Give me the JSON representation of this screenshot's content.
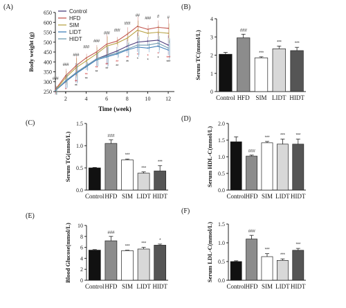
{
  "colors": {
    "Control": "#4b3b7a",
    "HFD": "#c2554e",
    "SIM": "#b9a447",
    "LIDT": "#3f7fb8",
    "HIDT": "#6e9bb0",
    "star_red": "#d23b3b",
    "star_dark": "#333333",
    "bar_control": "#111111",
    "bar_hfd": "#8c8c8c",
    "bar_white": "#ffffff",
    "bar_light": "#d8d8d8",
    "bar_dark": "#555555"
  },
  "chart_data": [
    {
      "panel": "(A)",
      "type": "line",
      "xlabel": "Time (week)",
      "ylabel": "Body weight (g)",
      "xlim": [
        1,
        12.6
      ],
      "ylim": [
        250,
        650
      ],
      "xticks": [
        2,
        4,
        6,
        8,
        10,
        12
      ],
      "yticks": [
        250,
        300,
        350,
        400,
        450,
        500,
        550,
        600,
        650
      ],
      "x": [
        1,
        2,
        3,
        4,
        5,
        6,
        7,
        8,
        9,
        10,
        11,
        12
      ],
      "legend": [
        "Control",
        "HFD",
        "SIM",
        "LIDT",
        "HIDT"
      ],
      "series": [
        {
          "name": "Control",
          "values": [
            255,
            300,
            345,
            380,
            415,
            435,
            455,
            480,
            500,
            505,
            510,
            485
          ]
        },
        {
          "name": "HFD",
          "values": [
            260,
            330,
            380,
            420,
            450,
            490,
            505,
            540,
            580,
            565,
            575,
            570
          ]
        },
        {
          "name": "SIM",
          "values": [
            255,
            320,
            370,
            405,
            440,
            480,
            495,
            520,
            560,
            545,
            550,
            545
          ]
        },
        {
          "name": "LIDT",
          "values": [
            255,
            300,
            340,
            375,
            410,
            425,
            440,
            460,
            475,
            470,
            480,
            460
          ]
        },
        {
          "name": "HIDT",
          "values": [
            255,
            305,
            345,
            380,
            415,
            430,
            445,
            465,
            485,
            485,
            495,
            470
          ]
        }
      ],
      "sig_top": [
        "###",
        "###",
        "###",
        "###",
        "###",
        "###",
        "###",
        "###",
        "##",
        "###",
        "#",
        "#"
      ],
      "sig_bottom": [
        "*",
        "**",
        "**",
        "**",
        "**",
        "**",
        "**",
        "*",
        "*",
        "*",
        "***"
      ]
    },
    {
      "panel": "(B)",
      "type": "bar",
      "ylabel": "Serum TC(mmol/L)",
      "ylim": [
        0,
        4
      ],
      "yticks": [
        0,
        1,
        2,
        3,
        4
      ],
      "categories": [
        "Control",
        "HFD",
        "SIM",
        "LIDT",
        "HIDT"
      ],
      "values": [
        2.05,
        2.95,
        1.85,
        2.35,
        2.25
      ],
      "errors": [
        0.1,
        0.2,
        0.06,
        0.15,
        0.18
      ],
      "sig": [
        "",
        "###",
        "***",
        "***",
        "***"
      ]
    },
    {
      "panel": "(C)",
      "type": "bar",
      "ylabel": "Serum TG(mmol/L)",
      "ylim": [
        0,
        1.5
      ],
      "yticks": [
        0,
        0.5,
        1.0,
        1.5
      ],
      "ytick_labels": [
        "0.0",
        "0.5",
        "1.0",
        "1.5"
      ],
      "categories": [
        "Control",
        "HFD",
        "SIM",
        "LIDT",
        "HIDT"
      ],
      "values": [
        0.5,
        1.05,
        0.68,
        0.38,
        0.43
      ],
      "errors": [
        0.01,
        0.08,
        0.02,
        0.03,
        0.12
      ],
      "sig": [
        "",
        "###",
        "***",
        "***",
        "***"
      ]
    },
    {
      "panel": "(D)",
      "type": "bar",
      "ylabel": "Serum HDL-C(mmol/L)",
      "ylim": [
        0,
        2.0
      ],
      "yticks": [
        0,
        0.5,
        1.0,
        1.5,
        2.0
      ],
      "ytick_labels": [
        "0.0",
        "0.5",
        "1.0",
        "1.5",
        "2.0"
      ],
      "categories": [
        "Control",
        "HFD",
        "SIM",
        "LIDT",
        "HIDT"
      ],
      "values": [
        1.45,
        1.02,
        1.42,
        1.38,
        1.38
      ],
      "errors": [
        0.15,
        0.03,
        0.04,
        0.15,
        0.15
      ],
      "sig": [
        "",
        "###",
        "***",
        "***",
        "***"
      ]
    },
    {
      "panel": "(E)",
      "type": "bar",
      "ylabel": "Blood Glucose(mmol/L)",
      "ylim": [
        0,
        10
      ],
      "yticks": [
        0,
        2,
        4,
        6,
        8,
        10
      ],
      "categories": [
        "Control",
        "HFD",
        "SIM",
        "LIDT",
        "HIDT"
      ],
      "values": [
        5.5,
        7.2,
        5.4,
        5.7,
        6.4
      ],
      "errors": [
        0.1,
        0.8,
        0.08,
        0.3,
        0.2
      ],
      "sig": [
        "",
        "###",
        "***",
        "***",
        "*"
      ]
    },
    {
      "panel": "(F)",
      "type": "bar",
      "ylabel": "Serum LDL-C(mmol/L)",
      "ylim": [
        0,
        1.5
      ],
      "yticks": [
        0,
        0.5,
        1.0,
        1.5
      ],
      "ytick_labels": [
        "0.0",
        "0.5",
        "1.0",
        "1.5"
      ],
      "categories": [
        "Control",
        "HFD",
        "SIM",
        "LIDT",
        "HIDT"
      ],
      "values": [
        0.5,
        1.1,
        0.63,
        0.53,
        0.8
      ],
      "errors": [
        0.02,
        0.1,
        0.08,
        0.04,
        0.05
      ],
      "sig": [
        "",
        "###",
        "***",
        "***",
        "***"
      ]
    }
  ]
}
